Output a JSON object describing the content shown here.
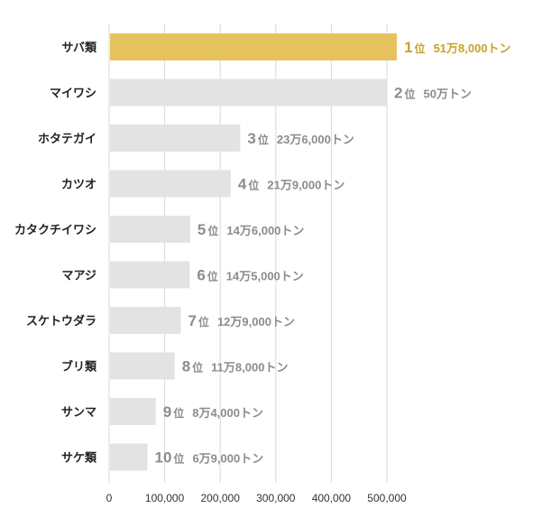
{
  "chart_data": {
    "type": "bar",
    "orientation": "horizontal",
    "categories": [
      "サバ類",
      "マイワシ",
      "ホタテガイ",
      "カツオ",
      "カタクチイワシ",
      "マアジ",
      "スケトウダラ",
      "ブリ類",
      "サンマ",
      "サケ類"
    ],
    "values": [
      518000,
      500000,
      236000,
      219000,
      146000,
      145000,
      129000,
      118000,
      84000,
      69000
    ],
    "rank_numbers": [
      "1",
      "2",
      "3",
      "4",
      "5",
      "6",
      "7",
      "8",
      "9",
      "10"
    ],
    "rank_suffix": "位",
    "value_labels": [
      "51万8,000トン",
      "50万トン",
      "23万6,000トン",
      "21万9,000トン",
      "14万6,000トン",
      "14万5,000トン",
      "12万9,000トン",
      "11万8,000トン",
      "8万4,000トン",
      "6万9,000トン"
    ],
    "x_ticks": [
      0,
      100000,
      200000,
      300000,
      400000,
      500000
    ],
    "x_tick_labels": [
      "0",
      "100,000",
      "200,000",
      "300,000",
      "400,000",
      "500,000"
    ],
    "xlim": [
      0,
      520000
    ],
    "grid": true,
    "highlight_index": 0,
    "colors": {
      "highlight_bar": "#E5C25E",
      "bar": "#E3E3E3",
      "highlight_label": "#C9A227",
      "label": "#8C8C8C",
      "grid": "#D9D9D9"
    }
  }
}
